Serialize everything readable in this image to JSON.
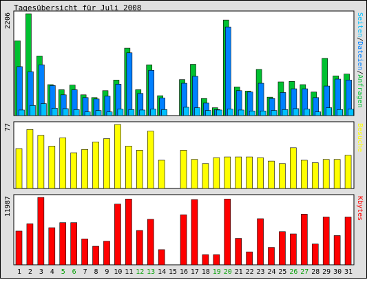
{
  "title": "Tagesübersicht für Juli 2008",
  "colors": {
    "background": "#e0e0e0",
    "panel": "#ffffff",
    "hits": "#00c030",
    "files": "#0080ff",
    "pages": "#00c0ff",
    "visits": "#ffff00",
    "kbytes": "#ff0000",
    "weekend": "#00a000",
    "text": "#000000"
  },
  "chart_data": [
    {
      "type": "bar",
      "panel": "requests",
      "max_label": "2206",
      "ylim": [
        0,
        2206
      ],
      "legend": [
        {
          "text": "Seiten",
          "color": "#00c0ff"
        },
        {
          "text": "/",
          "color": "#000000"
        },
        {
          "text": "Dateien",
          "color": "#0080ff"
        },
        {
          "text": "/",
          "color": "#000000"
        },
        {
          "text": "Anfragen",
          "color": "#00c030"
        }
      ],
      "categories": [
        "1",
        "2",
        "3",
        "4",
        "5",
        "6",
        "7",
        "8",
        "9",
        "10",
        "11",
        "12",
        "13",
        "14",
        "15",
        "16",
        "17",
        "18",
        "19",
        "20",
        "21",
        "22",
        "23",
        "24",
        "25",
        "26",
        "27",
        "28",
        "29",
        "30",
        "31"
      ],
      "series": [
        {
          "name": "Anfragen",
          "values": [
            1620,
            2206,
            1290,
            670,
            560,
            660,
            450,
            390,
            540,
            770,
            1460,
            560,
            1100,
            430,
            0,
            780,
            1110,
            370,
            170,
            2070,
            620,
            530,
            1000,
            400,
            730,
            740,
            670,
            510,
            1240,
            860,
            900
          ]
        },
        {
          "name": "Dateien",
          "values": [
            1060,
            950,
            1100,
            650,
            450,
            560,
            390,
            360,
            420,
            680,
            1360,
            480,
            980,
            380,
            0,
            700,
            850,
            270,
            130,
            1920,
            540,
            510,
            700,
            370,
            500,
            580,
            580,
            390,
            640,
            790,
            770
          ]
        },
        {
          "name": "Seiten",
          "values": [
            120,
            220,
            260,
            160,
            150,
            130,
            80,
            110,
            80,
            140,
            130,
            120,
            140,
            130,
            0,
            180,
            170,
            110,
            120,
            140,
            120,
            100,
            100,
            110,
            130,
            150,
            140,
            80,
            170,
            130,
            140
          ]
        }
      ]
    },
    {
      "type": "bar",
      "panel": "visits",
      "max_label": "77",
      "ylim": [
        0,
        77
      ],
      "legend": [
        {
          "text": "Besuche",
          "color": "#ffff00"
        }
      ],
      "categories": [
        "1",
        "2",
        "3",
        "4",
        "5",
        "6",
        "7",
        "8",
        "9",
        "10",
        "11",
        "12",
        "13",
        "14",
        "15",
        "16",
        "17",
        "18",
        "19",
        "20",
        "21",
        "22",
        "23",
        "24",
        "25",
        "26",
        "27",
        "28",
        "29",
        "30",
        "31"
      ],
      "series": [
        {
          "name": "Besuche",
          "values": [
            48,
            71,
            64,
            51,
            61,
            43,
            47,
            56,
            60,
            77,
            51,
            46,
            69,
            34,
            0,
            46,
            35,
            30,
            37,
            38,
            38,
            38,
            37,
            33,
            30,
            49,
            34,
            31,
            35,
            35,
            40
          ]
        }
      ]
    },
    {
      "type": "bar",
      "panel": "kbytes",
      "max_label": "11987",
      "ylim": [
        0,
        11987
      ],
      "legend": [
        {
          "text": "Kbytes",
          "color": "#ff0000"
        }
      ],
      "categories": [
        "1",
        "2",
        "3",
        "4",
        "5",
        "6",
        "7",
        "8",
        "9",
        "10",
        "11",
        "12",
        "13",
        "14",
        "15",
        "16",
        "17",
        "18",
        "19",
        "20",
        "21",
        "22",
        "23",
        "24",
        "25",
        "26",
        "27",
        "28",
        "29",
        "30",
        "31"
      ],
      "series": [
        {
          "name": "Kbytes",
          "values": [
            6000,
            7300,
            11987,
            6600,
            7500,
            7500,
            4600,
            3300,
            4200,
            10800,
            11700,
            6100,
            8100,
            2700,
            0,
            8900,
            11600,
            1800,
            1800,
            11700,
            4700,
            2300,
            8200,
            3100,
            5900,
            5500,
            9000,
            3700,
            8500,
            5200,
            8500
          ]
        }
      ]
    }
  ],
  "days": [
    {
      "label": "1",
      "weekend": false
    },
    {
      "label": "2",
      "weekend": false
    },
    {
      "label": "3",
      "weekend": false
    },
    {
      "label": "4",
      "weekend": false
    },
    {
      "label": "5",
      "weekend": true
    },
    {
      "label": "6",
      "weekend": true
    },
    {
      "label": "7",
      "weekend": false
    },
    {
      "label": "8",
      "weekend": false
    },
    {
      "label": "9",
      "weekend": false
    },
    {
      "label": "10",
      "weekend": false
    },
    {
      "label": "11",
      "weekend": false
    },
    {
      "label": "12",
      "weekend": true
    },
    {
      "label": "13",
      "weekend": true
    },
    {
      "label": "14",
      "weekend": false
    },
    {
      "label": "15",
      "weekend": false
    },
    {
      "label": "16",
      "weekend": false
    },
    {
      "label": "17",
      "weekend": false
    },
    {
      "label": "18",
      "weekend": false
    },
    {
      "label": "19",
      "weekend": true
    },
    {
      "label": "20",
      "weekend": true
    },
    {
      "label": "21",
      "weekend": false
    },
    {
      "label": "22",
      "weekend": false
    },
    {
      "label": "23",
      "weekend": false
    },
    {
      "label": "24",
      "weekend": false
    },
    {
      "label": "25",
      "weekend": false
    },
    {
      "label": "26",
      "weekend": true
    },
    {
      "label": "27",
      "weekend": true
    },
    {
      "label": "28",
      "weekend": false
    },
    {
      "label": "29",
      "weekend": false
    },
    {
      "label": "30",
      "weekend": false
    },
    {
      "label": "31",
      "weekend": false
    }
  ]
}
